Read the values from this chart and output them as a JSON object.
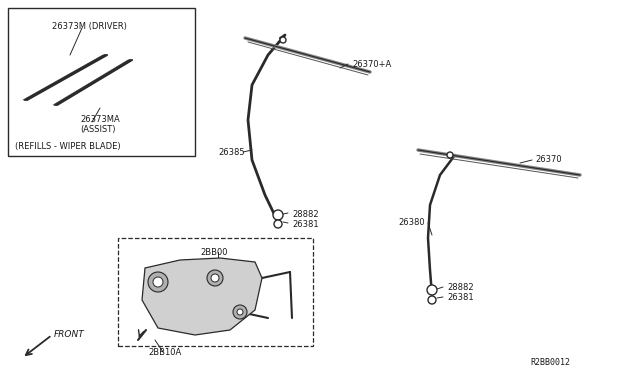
{
  "bg_color": "#ffffff",
  "line_color": "#2a2a2a",
  "text_color": "#1a1a1a",
  "fig_width": 6.4,
  "fig_height": 3.72,
  "dpi": 100,
  "ref_code": "R2BB0012",
  "parts": {
    "box_label": "(REFILLS - WIPER BLADE)",
    "part_26373M": "26373M (DRIVER)",
    "part_26373MA": "26373MA\n(ASSIST)",
    "part_26370A": "26370+A",
    "part_26385": "26385",
    "part_28882_1": "28882",
    "part_26381_1": "26381",
    "part_26370": "26370",
    "part_26380": "26380",
    "part_28882_2": "28882",
    "part_26381_2": "26381",
    "part_2BB00": "2BB00",
    "part_2BB10A": "2BB10A",
    "front_label": "FRONT"
  }
}
